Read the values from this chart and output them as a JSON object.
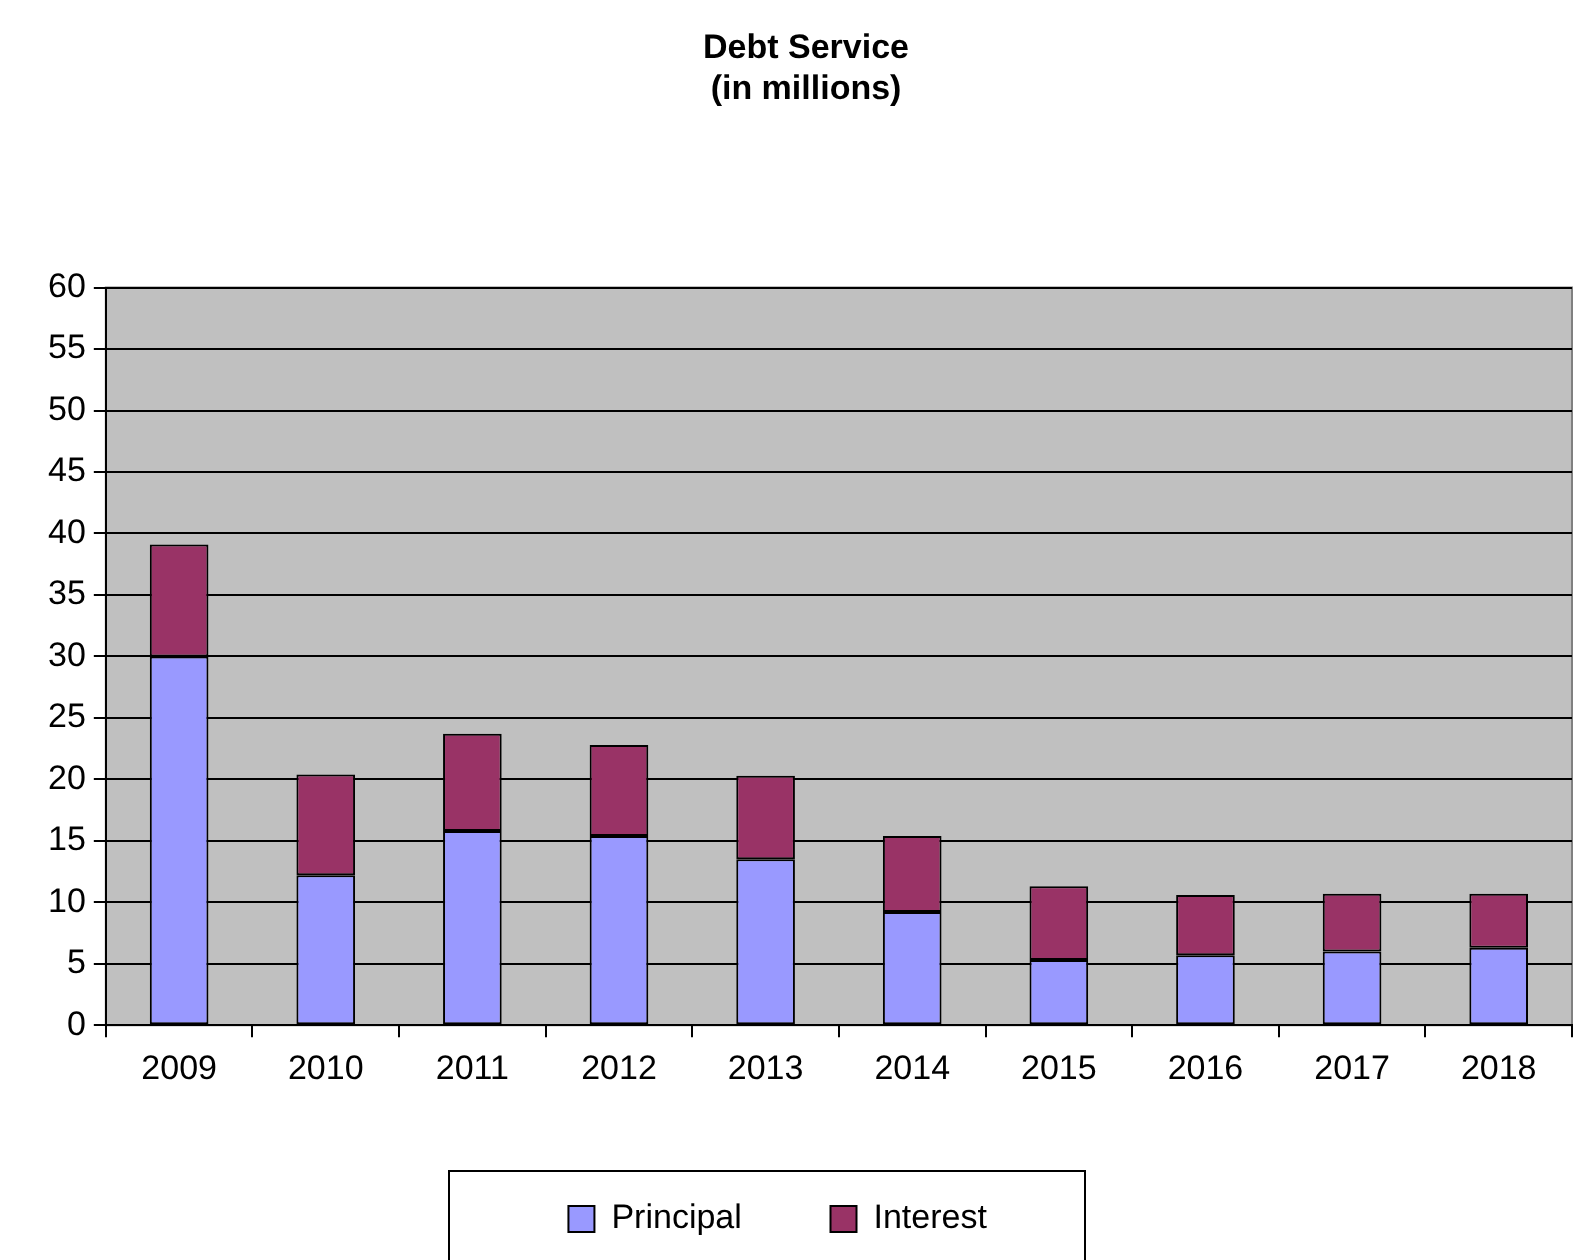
{
  "chart_data": {
    "type": "bar",
    "title": "Debt Service\n(in millions)",
    "stacked": true,
    "categories": [
      "2009",
      "2010",
      "2011",
      "2012",
      "2013",
      "2014",
      "2015",
      "2016",
      "2017",
      "2018"
    ],
    "series": [
      {
        "name": "Principal",
        "color": "#9999ff",
        "values": [
          30.0,
          12.2,
          15.8,
          15.4,
          13.5,
          9.2,
          5.3,
          5.7,
          6.0,
          6.3
        ]
      },
      {
        "name": "Interest",
        "color": "#993366",
        "values": [
          9.1,
          8.2,
          7.9,
          7.4,
          6.8,
          6.2,
          6.0,
          4.9,
          4.7,
          4.4
        ]
      }
    ],
    "ylim": [
      0,
      60
    ],
    "yticks": [
      0,
      5,
      10,
      15,
      20,
      25,
      30,
      35,
      40,
      45,
      50,
      55,
      60
    ],
    "grid": "y",
    "legend": "bottom"
  }
}
